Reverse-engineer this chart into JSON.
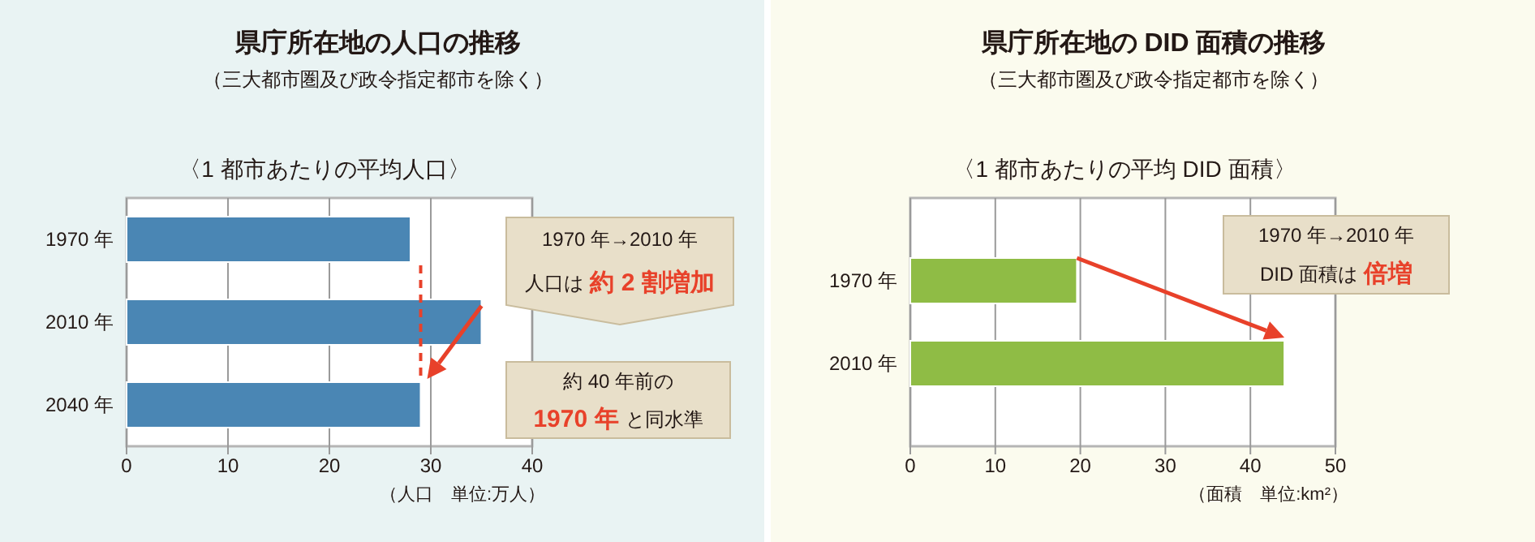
{
  "chart_data": [
    {
      "type": "bar",
      "orientation": "horizontal",
      "title": "県庁所在地の人口の推移",
      "subtitle": "（三大都市圏及び政令指定都市を除く）",
      "categories": [
        "1970 年",
        "2010 年",
        "2040 年"
      ],
      "values": [
        28,
        35,
        29
      ],
      "color": "#4a86b4",
      "xlim": [
        0,
        40
      ],
      "xticks": [
        0,
        10,
        20,
        30,
        40
      ],
      "grid": "x",
      "xlabel": "（人口　単位:万人）",
      "ref_lines": [
        {
          "axis": "x",
          "value": 29,
          "color": "#e8412a",
          "line_style": "dashed"
        }
      ],
      "annotations": [
        "〈1 都市あたりの平均人口〉",
        "1970 年→2010 年",
        "人口は",
        "約 2 割増加",
        "約 40 年前の",
        "1970 年",
        "と同水準"
      ]
    },
    {
      "type": "bar",
      "orientation": "horizontal",
      "title": "県庁所在地の DID 面積の推移",
      "subtitle": "（三大都市圏及び政令指定都市を除く）",
      "categories": [
        "1970 年",
        "2010 年"
      ],
      "values": [
        19.6,
        44
      ],
      "color": "#8fbc45",
      "xlim": [
        0,
        50
      ],
      "xticks": [
        0,
        10,
        20,
        30,
        40,
        50
      ],
      "grid": "x",
      "xlabel": "（面積　単位:km²）",
      "annotations": [
        "〈1 都市あたりの平均 DID 面積〉",
        "1970 年→2010 年",
        "DID 面積は",
        "倍増"
      ]
    }
  ]
}
